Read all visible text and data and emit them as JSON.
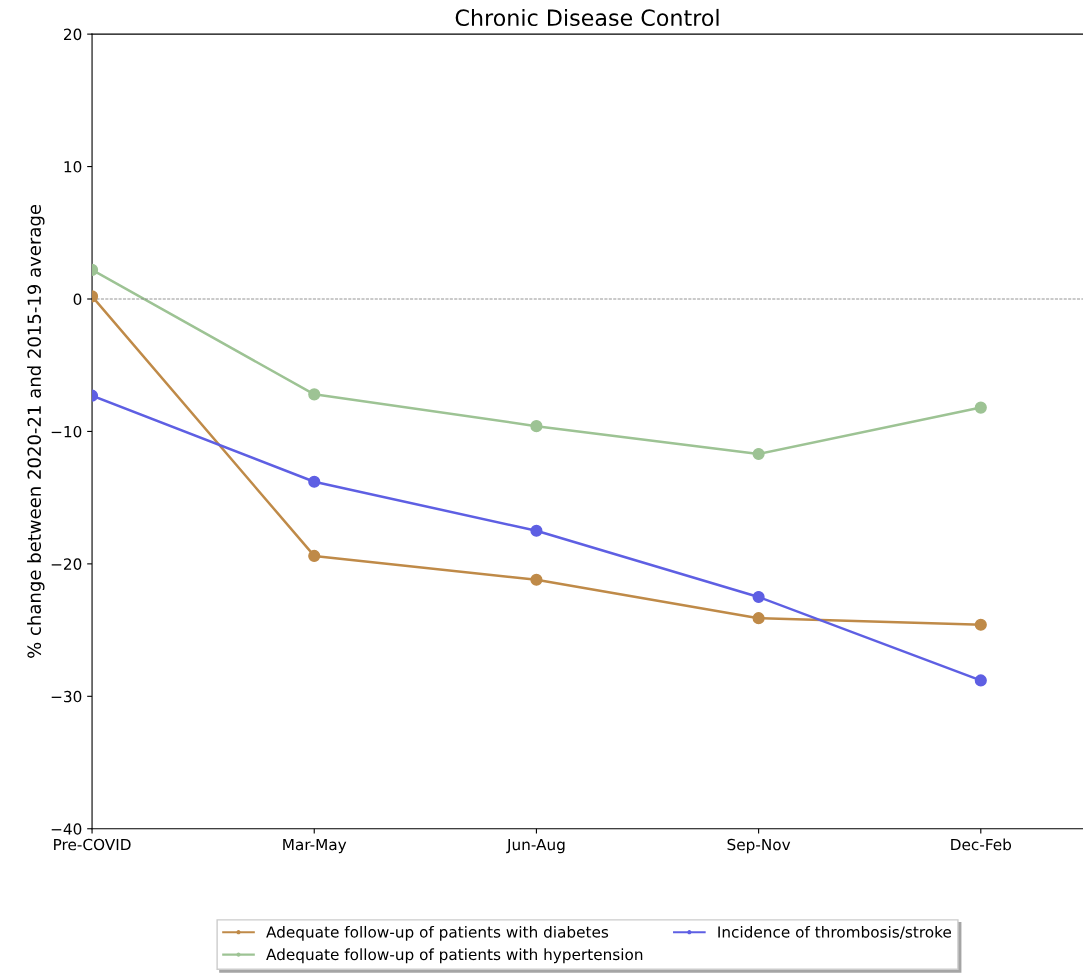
{
  "chart_data": {
    "type": "line",
    "title": "Chronic Disease Control",
    "ylabel": "% change between 2020-21 and 2015-19 average",
    "categories": [
      "Pre-COVID",
      "Mar-May",
      "Jun-Aug",
      "Sep-Nov",
      "Dec-Feb"
    ],
    "series": [
      {
        "name": "Adequate follow-up of patients with diabetes",
        "color": "#bf8a48",
        "values": [
          0.2,
          -19.4,
          -21.2,
          -24.1,
          -24.6
        ]
      },
      {
        "name": "Adequate follow-up of patients with hypertension",
        "color": "#9dc394",
        "values": [
          2.2,
          -7.2,
          -9.6,
          -11.7,
          -8.2
        ]
      },
      {
        "name": "Incidence of thrombosis/stroke",
        "color": "#5e5fe3",
        "values": [
          -7.3,
          -13.8,
          -17.5,
          -22.5,
          -28.8
        ]
      }
    ],
    "ylim": [
      -40,
      20
    ],
    "yticks": [
      {
        "value": -40,
        "label": "−40"
      },
      {
        "value": -30,
        "label": "−30"
      },
      {
        "value": -20,
        "label": "−20"
      },
      {
        "value": -10,
        "label": "−10"
      },
      0,
      10,
      20
    ],
    "ref_lines": [
      {
        "axis": "y",
        "value": 0,
        "color": "#808080",
        "line_style": "dashed"
      }
    ],
    "legend": "bottom",
    "marker": "circle",
    "line_style": "solid",
    "grid": false
  }
}
